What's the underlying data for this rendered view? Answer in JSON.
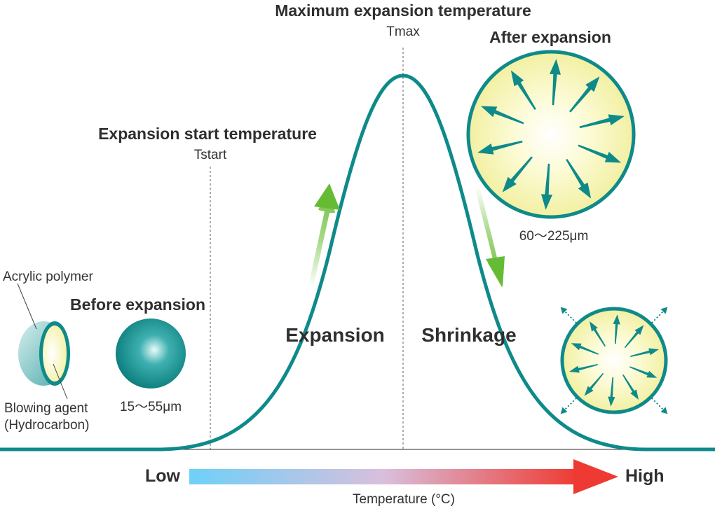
{
  "labels": {
    "tmax_heading": "Maximum expansion temperature",
    "tmax_symbol": "Tmax",
    "tstart_heading": "Expansion start temperature",
    "tstart_symbol": "Tstart",
    "after_expansion": "After expansion",
    "after_size": "60～225μm",
    "before_expansion": "Before expansion",
    "before_size": "15～55μm",
    "acrylic_polymer": "Acrylic polymer",
    "blowing_agent_line1": "Blowing agent",
    "blowing_agent_line2": "(Hydrocarbon)",
    "expansion": "Expansion",
    "shrinkage": "Shrinkage",
    "low": "Low",
    "high": "High",
    "temperature_axis": "Temperature (°C)"
  },
  "colors": {
    "teal": "#0e8a8a",
    "green": "#6cbf3a",
    "gradient_low": "#6ed0f8",
    "gradient_mid": "#d9bfdc",
    "gradient_high": "#ee3a32",
    "sphere_fill_inner": "#ffffff",
    "sphere_fill_outer": "#f4f2a6"
  },
  "icons": [
    "expand-arrow-icon",
    "shrink-arrow-icon",
    "dotted-outward-arrow-icon"
  ]
}
